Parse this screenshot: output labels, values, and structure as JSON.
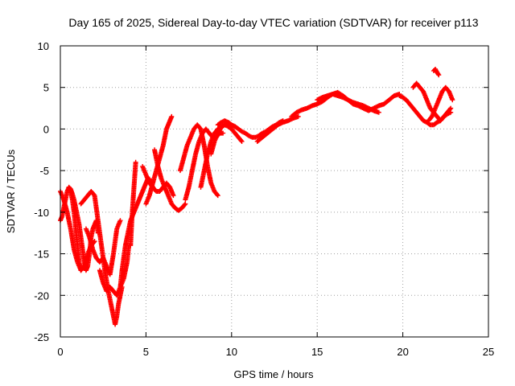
{
  "chart_data": {
    "type": "scatter",
    "title": "Day 165 of 2025, Sidereal Day-to-day VTEC variation (SDTVAR) for receiver p113",
    "xlabel": "GPS time / hours",
    "ylabel": "SDTVAR / TECUs",
    "xlim": [
      0,
      25
    ],
    "ylim": [
      -25,
      10
    ],
    "xticks": [
      "0",
      "5",
      "10",
      "15",
      "20",
      "25"
    ],
    "yticks": [
      "10",
      "5",
      "0",
      "-5",
      "-10",
      "-15",
      "-20",
      "-25"
    ],
    "grid": true,
    "marker": "plus",
    "color": "#ff0000",
    "series": [
      {
        "x": [
          0.0,
          0.2,
          0.4,
          0.6,
          0.8,
          1.0,
          1.2,
          1.4,
          1.6,
          1.8,
          2.0
        ],
        "y": [
          -7.5,
          -8.5,
          -10.0,
          -12.0,
          -14.5,
          -16.0,
          -17.0,
          -16.5,
          -15.0,
          -14.0,
          -13.5
        ]
      },
      {
        "x": [
          0.0,
          0.1,
          0.2,
          0.3,
          0.4,
          0.5,
          0.6,
          0.7,
          0.8,
          0.9,
          1.0,
          1.1,
          1.2
        ],
        "y": [
          -11.0,
          -10.5,
          -9.5,
          -8.5,
          -7.5,
          -7.0,
          -7.5,
          -8.5,
          -10.0,
          -12.0,
          -14.0,
          -16.0,
          -17.0
        ]
      },
      {
        "x": [
          0.5,
          0.6,
          0.7,
          0.8,
          0.9,
          1.0,
          1.1,
          1.2,
          1.3,
          1.4,
          1.5,
          1.6,
          1.7,
          1.8,
          1.9,
          2.0,
          2.1,
          2.2
        ],
        "y": [
          -7.0,
          -7.2,
          -7.8,
          -8.5,
          -9.5,
          -10.5,
          -11.5,
          -13.0,
          -14.5,
          -16.0,
          -17.0,
          -16.5,
          -15.0,
          -13.0,
          -12.0,
          -11.5,
          -11.0,
          -12.5
        ]
      },
      {
        "x": [
          1.2,
          1.4,
          1.6,
          1.8,
          2.0,
          2.2,
          2.4,
          2.6,
          2.8,
          3.0,
          3.1,
          3.2,
          3.3,
          3.4,
          3.5,
          3.6
        ],
        "y": [
          -9.0,
          -8.5,
          -8.0,
          -7.5,
          -8.0,
          -11.0,
          -14.0,
          -17.0,
          -19.5,
          -21.5,
          -22.5,
          -23.5,
          -22.5,
          -21.0,
          -20.0,
          -19.0
        ]
      },
      {
        "x": [
          2.3,
          2.5,
          2.7,
          2.9,
          3.1,
          3.3,
          3.5,
          3.7,
          3.9,
          4.0
        ],
        "y": [
          -17.0,
          -18.5,
          -19.5,
          -19.0,
          -19.5,
          -20.0,
          -19.0,
          -18.0,
          -16.0,
          -14.0
        ]
      },
      {
        "x": [
          1.5,
          1.7,
          1.9,
          2.1,
          2.3,
          2.5,
          2.7,
          2.9,
          3.1,
          3.3,
          3.5
        ],
        "y": [
          -12.0,
          -13.0,
          -14.5,
          -15.5,
          -16.0,
          -15.5,
          -16.5,
          -17.5,
          -15.0,
          -12.0,
          -11.0
        ]
      },
      {
        "x": [
          3.5,
          3.6,
          3.7,
          3.8,
          3.9,
          4.0,
          4.1,
          4.2,
          4.3,
          4.4,
          4.5,
          4.6,
          4.7,
          4.8,
          4.9,
          5.0,
          5.1,
          5.2,
          5.3,
          5.4
        ],
        "y": [
          -19.0,
          -17.0,
          -15.5,
          -14.0,
          -13.0,
          -12.0,
          -11.0,
          -10.5,
          -10.0,
          -9.5,
          -9.0,
          -8.5,
          -8.0,
          -7.5,
          -7.0,
          -6.5,
          -6.0,
          -6.0,
          -6.5,
          -7.0
        ]
      },
      {
        "x": [
          4.1,
          4.15,
          4.2,
          4.25,
          4.3,
          4.35,
          4.4
        ],
        "y": [
          -14.0,
          -12.0,
          -10.0,
          -8.5,
          -7.0,
          -5.5,
          -4.0
        ]
      },
      {
        "x": [
          5.0,
          5.2,
          5.4,
          5.6,
          5.8,
          6.0,
          6.1,
          6.2,
          6.3,
          6.4,
          6.5
        ],
        "y": [
          -9.0,
          -8.0,
          -6.5,
          -5.0,
          -3.5,
          -2.0,
          -1.0,
          0.0,
          0.5,
          1.0,
          1.5
        ]
      },
      {
        "x": [
          5.5,
          5.7,
          5.9,
          6.1,
          6.3,
          6.5,
          6.7,
          6.9,
          7.1,
          7.3
        ],
        "y": [
          -2.5,
          -4.5,
          -6.0,
          -7.0,
          -8.0,
          -9.0,
          -9.5,
          -9.8,
          -9.5,
          -9.0
        ]
      },
      {
        "x": [
          4.8,
          5.0,
          5.2,
          5.4,
          5.6,
          5.8,
          6.0,
          6.2,
          6.4,
          6.6
        ],
        "y": [
          -4.5,
          -5.5,
          -6.5,
          -7.0,
          -7.5,
          -7.5,
          -7.0,
          -6.5,
          -7.0,
          -8.0
        ]
      },
      {
        "x": [
          7.3,
          7.5,
          7.7,
          7.9,
          8.1,
          8.3,
          8.5,
          8.7,
          8.9,
          9.1,
          9.3,
          9.5
        ],
        "y": [
          -8.5,
          -7.0,
          -5.0,
          -3.0,
          -1.5,
          -0.5,
          0.0,
          -0.5,
          -1.0,
          -1.0,
          -0.5,
          -0.5
        ]
      },
      {
        "x": [
          7.0,
          7.2,
          7.4,
          7.6,
          7.8,
          8.0,
          8.2,
          8.4,
          8.6,
          8.8,
          9.0,
          9.2
        ],
        "y": [
          -5.0,
          -3.5,
          -2.0,
          -1.0,
          0.0,
          0.5,
          0.0,
          -2.0,
          -4.5,
          -6.5,
          -7.5,
          -8.0
        ]
      },
      {
        "x": [
          8.2,
          8.4,
          8.6,
          8.8,
          9.0,
          9.2,
          9.4,
          9.6,
          9.8,
          10.0,
          10.2,
          10.4,
          10.6
        ],
        "y": [
          -7.0,
          -5.0,
          -3.0,
          -1.5,
          -0.5,
          0.0,
          0.3,
          0.5,
          0.3,
          0.0,
          -0.5,
          -1.0,
          -1.5
        ]
      },
      {
        "x": [
          8.8,
          9.0,
          9.2,
          9.4,
          9.6,
          9.8,
          10.0,
          10.2
        ],
        "y": [
          -3.0,
          -1.5,
          -0.5,
          0.2,
          0.5,
          0.8,
          0.5,
          0.3
        ]
      },
      {
        "x": [
          9.2,
          9.4,
          9.6,
          9.8,
          10.0,
          10.2,
          10.4,
          10.6,
          10.8,
          11.0,
          11.2,
          11.4,
          11.6,
          11.8,
          12.0,
          12.2,
          12.4,
          12.6,
          12.8,
          13.0
        ],
        "y": [
          0.5,
          0.8,
          1.0,
          0.8,
          0.5,
          0.3,
          0.0,
          -0.3,
          -0.5,
          -0.8,
          -1.0,
          -1.0,
          -0.8,
          -0.5,
          -0.3,
          0.0,
          0.3,
          0.5,
          0.8,
          1.0
        ]
      },
      {
        "x": [
          11.5,
          11.8,
          12.1,
          12.4,
          12.7,
          13.0,
          13.3,
          13.6,
          13.9
        ],
        "y": [
          -1.5,
          -1.0,
          -0.5,
          0.0,
          0.5,
          0.8,
          1.0,
          1.3,
          1.5
        ]
      },
      {
        "x": [
          13.5,
          13.8,
          14.1,
          14.4,
          14.7,
          15.0,
          15.3,
          15.6,
          15.9,
          16.2,
          16.5,
          16.8,
          17.1,
          17.4,
          17.7,
          18.0,
          18.3,
          18.6,
          18.9,
          19.2,
          19.5,
          19.8
        ],
        "y": [
          1.5,
          2.0,
          2.3,
          2.5,
          2.8,
          3.0,
          3.3,
          3.8,
          4.2,
          4.4,
          4.0,
          3.5,
          3.0,
          2.8,
          2.5,
          2.2,
          2.5,
          2.8,
          3.0,
          3.5,
          4.0,
          4.2
        ]
      },
      {
        "x": [
          15.0,
          15.3,
          15.6,
          15.9,
          16.2,
          16.5,
          16.8,
          17.1,
          17.4,
          17.7,
          18.0,
          18.3,
          18.6
        ],
        "y": [
          3.5,
          3.8,
          4.0,
          4.2,
          4.0,
          3.8,
          3.5,
          3.2,
          3.0,
          2.8,
          2.5,
          2.2,
          2.0
        ]
      },
      {
        "x": [
          19.8,
          20.0,
          20.2,
          20.4,
          20.6,
          20.8,
          21.0,
          21.2,
          21.4,
          21.6,
          21.8,
          22.0,
          22.2,
          22.4,
          22.6,
          22.8
        ],
        "y": [
          4.0,
          3.8,
          3.5,
          3.0,
          2.5,
          2.0,
          1.5,
          1.0,
          0.8,
          0.5,
          0.5,
          0.8,
          1.0,
          1.5,
          1.8,
          2.0
        ]
      },
      {
        "x": [
          20.6,
          20.8,
          21.0,
          21.2,
          21.4,
          21.6,
          21.8,
          22.0,
          22.2,
          22.4,
          22.6,
          22.8
        ],
        "y": [
          5.0,
          5.5,
          5.0,
          4.5,
          3.5,
          2.5,
          2.0,
          1.5,
          1.0,
          1.5,
          2.0,
          2.5
        ]
      },
      {
        "x": [
          21.5,
          21.7,
          21.9,
          22.1,
          22.3,
          22.5,
          22.7,
          22.9
        ],
        "y": [
          1.0,
          1.5,
          2.5,
          3.5,
          4.5,
          5.0,
          4.5,
          3.5
        ]
      },
      {
        "x": [
          21.8,
          21.9,
          22.0,
          22.1
        ],
        "y": [
          7.0,
          7.2,
          6.8,
          6.5
        ]
      }
    ]
  }
}
